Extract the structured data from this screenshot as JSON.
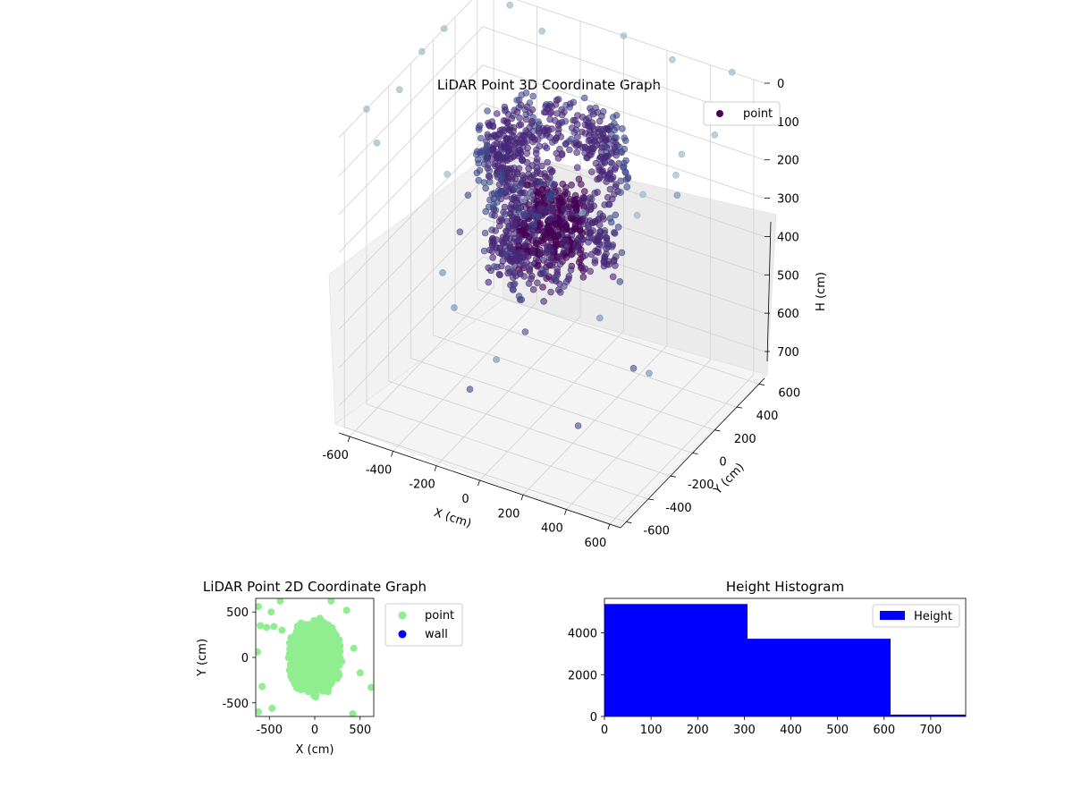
{
  "chart_data": [
    {
      "type": "scatter",
      "title": "LiDAR Point 3D Coordinate Graph",
      "xlabel": "X (cm)",
      "ylabel": "Y (cm)",
      "zlabel": "H (cm)",
      "xlim": [
        -650,
        650
      ],
      "ylim": [
        -650,
        650
      ],
      "zlim": [
        0,
        770
      ],
      "x_ticks": [
        -600,
        -400,
        -200,
        0,
        200,
        400,
        600
      ],
      "y_ticks": [
        -600,
        -400,
        -200,
        0,
        200,
        400,
        600
      ],
      "z_ticks": [
        0,
        100,
        200,
        300,
        400,
        500,
        600,
        700
      ],
      "z_inverted": true,
      "legend": {
        "position": "top-right",
        "entries": [
          {
            "name": "point",
            "color": "#440154"
          }
        ]
      },
      "colormap": [
        "#440154",
        "#482878",
        "#3e4a89",
        "#6a8caf",
        "#8fb0c4"
      ],
      "series": [
        {
          "name": "point",
          "description_points": [
            [
              -500,
              600,
              0
            ],
            [
              -300,
              500,
              0
            ],
            [
              0,
              650,
              0
            ],
            [
              250,
              600,
              0
            ],
            [
              500,
              650,
              0
            ],
            [
              650,
              400,
              0
            ],
            [
              650,
              200,
              0
            ],
            [
              600,
              0,
              0
            ],
            [
              650,
              -150,
              0
            ],
            [
              600,
              -350,
              0
            ],
            [
              650,
              -500,
              0
            ],
            [
              -650,
              300,
              0
            ],
            [
              -650,
              100,
              0
            ],
            [
              -600,
              -200,
              0
            ],
            [
              -650,
              -400,
              0
            ],
            [
              -500,
              -600,
              0
            ],
            [
              -150,
              -650,
              0
            ],
            [
              200,
              -650,
              0
            ],
            [
              450,
              -600,
              0
            ],
            [
              -400,
              400,
              250
            ],
            [
              400,
              350,
              250
            ],
            [
              -350,
              -300,
              400
            ],
            [
              350,
              -250,
              400
            ],
            [
              0,
              500,
              500
            ],
            [
              0,
              -500,
              500
            ],
            [
              450,
              0,
              600
            ],
            [
              -450,
              0,
              600
            ],
            [
              -250,
              250,
              700
            ],
            [
              250,
              250,
              700
            ],
            [
              250,
              -250,
              700
            ],
            [
              -250,
              -250,
              700
            ]
          ]
        }
      ]
    },
    {
      "type": "scatter",
      "title": "LiDAR Point 2D Coordinate Graph",
      "xlabel": "X (cm)",
      "ylabel": "Y (cm)",
      "xlim": [
        -650,
        650
      ],
      "ylim": [
        -650,
        650
      ],
      "x_ticks": [
        -500,
        0,
        500
      ],
      "y_ticks": [
        -500,
        0,
        500
      ],
      "legend": {
        "position": "outside-right",
        "entries": [
          {
            "name": "point",
            "color": "#90ee90"
          },
          {
            "name": "wall",
            "color": "#0000ff"
          }
        ]
      },
      "series": [
        {
          "name": "point",
          "color": "#90ee90",
          "outliers": [
            [
              -620,
              560
            ],
            [
              -480,
              500
            ],
            [
              -600,
              350
            ],
            [
              -530,
              330
            ],
            [
              -450,
              340
            ],
            [
              -360,
              300
            ],
            [
              -630,
              60
            ],
            [
              -580,
              -320
            ],
            [
              -620,
              -600
            ],
            [
              -470,
              -560
            ],
            [
              180,
              620
            ],
            [
              430,
              100
            ],
            [
              500,
              -170
            ],
            [
              620,
              -330
            ],
            [
              420,
              -620
            ],
            [
              350,
              520
            ],
            [
              -380,
              620
            ]
          ]
        },
        {
          "name": "wall",
          "color": "#0000ff",
          "points": []
        }
      ]
    },
    {
      "type": "bar",
      "title": "Height Histogram",
      "xlim": [
        0,
        775
      ],
      "ylim": [
        0,
        5650
      ],
      "x_ticks": [
        0,
        100,
        200,
        300,
        400,
        500,
        600,
        700
      ],
      "y_ticks": [
        0,
        2000,
        4000
      ],
      "legend": {
        "position": "top-right",
        "entries": [
          {
            "name": "Height",
            "color": "#0000ff"
          }
        ]
      },
      "series": [
        {
          "name": "Height",
          "color": "#0000ff",
          "bins": [
            {
              "start": 0,
              "end": 307,
              "count": 5380
            },
            {
              "start": 307,
              "end": 614,
              "count": 3720
            },
            {
              "start": 614,
              "end": 775,
              "count": 90
            }
          ]
        }
      ]
    }
  ]
}
